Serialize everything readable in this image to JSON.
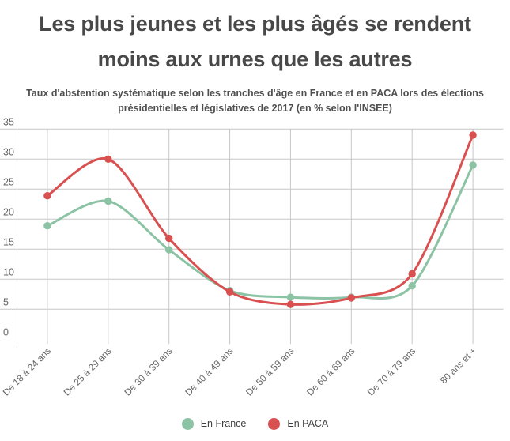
{
  "title": {
    "text": "Les plus jeunes et les plus âgés se rendent moins aux urnes que les autres"
  },
  "subtitle": {
    "text": "Taux d'abstention systématique selon les tranches d'âge en France et en PACA lors des élections présidentielles et législatives de 2017 (en % selon l'INSEE)"
  },
  "chart_data": {
    "type": "line",
    "categories": [
      "De 18 à 24 ans",
      "De 25 à 29 ans",
      "De 30 à 39 ans",
      "De 40 à 49 ans",
      "De 50 à 59 ans",
      "De 60 à 69 ans",
      "De 70 à 79 ans",
      "80 ans et +"
    ],
    "series": [
      {
        "name": "En France",
        "color": "#8cc3a4",
        "values": [
          18.9,
          23.0,
          14.9,
          8.1,
          7.0,
          7.0,
          8.9,
          29.0
        ]
      },
      {
        "name": "En PACA",
        "color": "#d95050",
        "values": [
          23.9,
          30.0,
          16.8,
          7.9,
          5.8,
          6.9,
          10.9,
          34.0
        ]
      }
    ],
    "xlabel": "",
    "ylabel": "",
    "ylim": [
      0,
      35
    ],
    "ytick_step": 5,
    "yticks": [
      0,
      5,
      10,
      15,
      20,
      25,
      30,
      35
    ],
    "grid": true,
    "legend_position": "bottom",
    "colors": {
      "gridline": "#c7c7c7",
      "axis_label": "#666666",
      "title": "#484848",
      "subtitle": "#4f4f4f",
      "legend_text": "#3f3f3f",
      "background": "#ffffff"
    }
  }
}
